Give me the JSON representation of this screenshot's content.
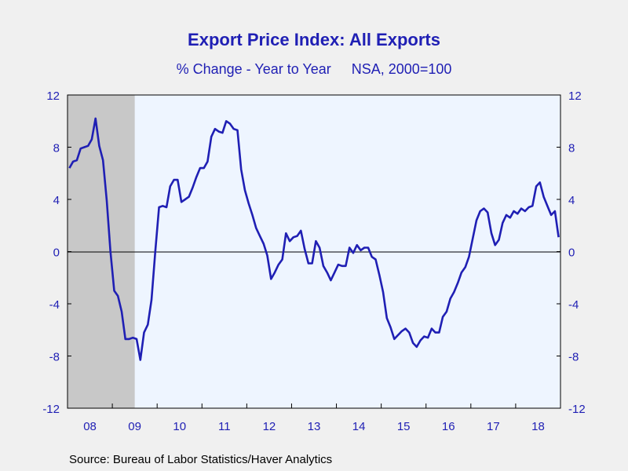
{
  "header": {
    "title": "Export Price Index: All Exports",
    "subtitle_left": "% Change - Year to Year",
    "subtitle_right": "NSA, 2000=100"
  },
  "footer": {
    "source": "Source:  Bureau of Labor Statistics/Haver Analytics"
  },
  "chart_data": {
    "type": "line",
    "title": "Export Price Index: All Exports",
    "subtitle": "% Change - Year to Year    NSA, 2000=100",
    "xlabel": "",
    "ylabel": "",
    "ylim": [
      -12,
      12
    ],
    "y_ticks": [
      12,
      8,
      4,
      0,
      -4,
      -8,
      -12
    ],
    "x_tick_labels": [
      "08",
      "09",
      "10",
      "11",
      "12",
      "13",
      "14",
      "15",
      "16",
      "17",
      "18"
    ],
    "x_range": [
      "2008-01",
      "2018-12"
    ],
    "grid": false,
    "zero_line": true,
    "recession_shading": {
      "start": "2008-01",
      "end": "2009-06",
      "color": "#c8c8c8"
    },
    "plot_background": "#eef5ff",
    "line_color": "#1f1fb4",
    "series": [
      {
        "x": [
          "2008-01",
          "2008-02",
          "2008-03",
          "2008-04",
          "2008-05",
          "2008-06",
          "2008-07",
          "2008-08",
          "2008-09",
          "2008-10",
          "2008-11",
          "2008-12",
          "2009-01",
          "2009-02",
          "2009-03",
          "2009-04",
          "2009-05",
          "2009-06",
          "2009-07",
          "2009-08",
          "2009-09",
          "2009-10",
          "2009-11",
          "2009-12",
          "2010-01",
          "2010-02",
          "2010-03",
          "2010-04",
          "2010-05",
          "2010-06",
          "2010-07",
          "2010-08",
          "2010-09",
          "2010-10",
          "2010-11",
          "2010-12",
          "2011-01",
          "2011-02",
          "2011-03",
          "2011-04",
          "2011-05",
          "2011-06",
          "2011-07",
          "2011-08",
          "2011-09",
          "2011-10",
          "2011-11",
          "2011-12",
          "2012-01",
          "2012-02",
          "2012-03",
          "2012-04",
          "2012-05",
          "2012-06",
          "2012-07",
          "2012-08",
          "2012-09",
          "2012-10",
          "2012-11",
          "2012-12",
          "2013-01",
          "2013-02",
          "2013-03",
          "2013-04",
          "2013-05",
          "2013-06",
          "2013-07",
          "2013-08",
          "2013-09",
          "2013-10",
          "2013-11",
          "2013-12",
          "2014-01",
          "2014-02",
          "2014-03",
          "2014-04",
          "2014-05",
          "2014-06",
          "2014-07",
          "2014-08",
          "2014-09",
          "2014-10",
          "2014-11",
          "2014-12",
          "2015-01",
          "2015-02",
          "2015-03",
          "2015-04",
          "2015-05",
          "2015-06",
          "2015-07",
          "2015-08",
          "2015-09",
          "2015-10",
          "2015-11",
          "2015-12",
          "2016-01",
          "2016-02",
          "2016-03",
          "2016-04",
          "2016-05",
          "2016-06",
          "2016-07",
          "2016-08",
          "2016-09",
          "2016-10",
          "2016-11",
          "2016-12",
          "2017-01",
          "2017-02",
          "2017-03",
          "2017-04",
          "2017-05",
          "2017-06",
          "2017-07",
          "2017-08",
          "2017-09",
          "2017-10",
          "2017-11",
          "2017-12",
          "2018-01",
          "2018-02",
          "2018-03",
          "2018-04",
          "2018-05",
          "2018-06",
          "2018-07",
          "2018-08",
          "2018-09",
          "2018-10",
          "2018-11",
          "2018-12"
        ],
        "values": [
          6.4,
          6.9,
          7.0,
          7.9,
          8.0,
          8.1,
          8.6,
          10.2,
          8.1,
          7.0,
          3.9,
          0.0,
          -3.0,
          -3.4,
          -4.6,
          -6.7,
          -6.7,
          -6.6,
          -6.7,
          -8.3,
          -6.2,
          -5.6,
          -3.7,
          0.0,
          3.4,
          3.5,
          3.4,
          5.0,
          5.5,
          5.5,
          3.8,
          4.0,
          4.2,
          4.9,
          5.7,
          6.4,
          6.4,
          6.9,
          8.8,
          9.4,
          9.2,
          9.1,
          10.0,
          9.8,
          9.4,
          9.3,
          6.3,
          4.7,
          3.7,
          2.8,
          1.8,
          1.2,
          0.6,
          -0.3,
          -2.1,
          -1.6,
          -1.0,
          -0.6,
          1.4,
          0.8,
          1.1,
          1.2,
          1.6,
          0.2,
          -0.9,
          -0.9,
          0.8,
          0.3,
          -1.1,
          -1.6,
          -2.2,
          -1.6,
          -1.0,
          -1.1,
          -1.1,
          0.3,
          -0.1,
          0.5,
          0.1,
          0.3,
          0.3,
          -0.4,
          -0.6,
          -1.8,
          -3.1,
          -5.1,
          -5.8,
          -6.7,
          -6.4,
          -6.1,
          -5.9,
          -6.2,
          -7.0,
          -7.3,
          -6.8,
          -6.5,
          -6.6,
          -5.9,
          -6.2,
          -6.2,
          -5.0,
          -4.6,
          -3.6,
          -3.1,
          -2.4,
          -1.6,
          -1.2,
          -0.4,
          1.0,
          2.4,
          3.1,
          3.3,
          3.0,
          1.4,
          0.5,
          0.9,
          2.2,
          2.8,
          2.6,
          3.1,
          2.9,
          3.3,
          3.1,
          3.4,
          3.5,
          5.0,
          5.3,
          4.2,
          3.5,
          2.8,
          3.1,
          1.1
        ]
      }
    ]
  }
}
